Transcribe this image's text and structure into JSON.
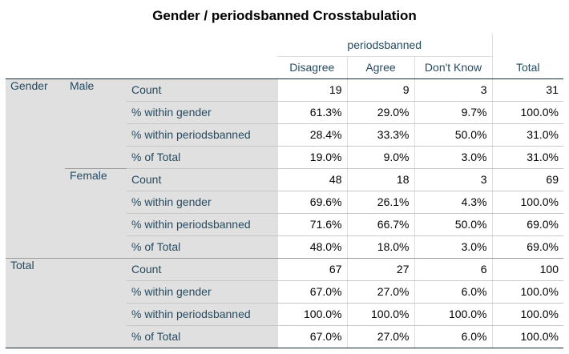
{
  "title": "Gender / periodsbanned Crosstabulation",
  "column_spanner": "periodsbanned",
  "columns": [
    "Disagree",
    "Agree",
    "Don't Know",
    "Total"
  ],
  "groups": [
    {
      "label": "Gender",
      "subgroups": [
        {
          "label": "Male",
          "rows": [
            {
              "stat": "Count",
              "values": [
                "19",
                "9",
                "3",
                "31"
              ]
            },
            {
              "stat": "% within gender",
              "values": [
                "61.3%",
                "29.0%",
                "9.7%",
                "100.0%"
              ]
            },
            {
              "stat": "% within periodsbanned",
              "values": [
                "28.4%",
                "33.3%",
                "50.0%",
                "31.0%"
              ]
            },
            {
              "stat": "% of Total",
              "values": [
                "19.0%",
                "9.0%",
                "3.0%",
                "31.0%"
              ]
            }
          ]
        },
        {
          "label": "Female",
          "rows": [
            {
              "stat": "Count",
              "values": [
                "48",
                "18",
                "3",
                "69"
              ]
            },
            {
              "stat": "% within gender",
              "values": [
                "69.6%",
                "26.1%",
                "4.3%",
                "100.0%"
              ]
            },
            {
              "stat": "% within periodsbanned",
              "values": [
                "71.6%",
                "66.7%",
                "50.0%",
                "69.0%"
              ]
            },
            {
              "stat": "% of Total",
              "values": [
                "48.0%",
                "18.0%",
                "3.0%",
                "69.0%"
              ]
            }
          ]
        }
      ]
    },
    {
      "label": "Total",
      "subgroups": [
        {
          "label": "",
          "rows": [
            {
              "stat": "Count",
              "values": [
                "67",
                "27",
                "6",
                "100"
              ]
            },
            {
              "stat": "% within gender",
              "values": [
                "67.0%",
                "27.0%",
                "6.0%",
                "100.0%"
              ]
            },
            {
              "stat": "% within periodsbanned",
              "values": [
                "100.0%",
                "100.0%",
                "100.0%",
                "100.0%"
              ]
            },
            {
              "stat": "% of Total",
              "values": [
                "67.0%",
                "27.0%",
                "6.0%",
                "100.0%"
              ]
            }
          ]
        }
      ]
    }
  ]
}
